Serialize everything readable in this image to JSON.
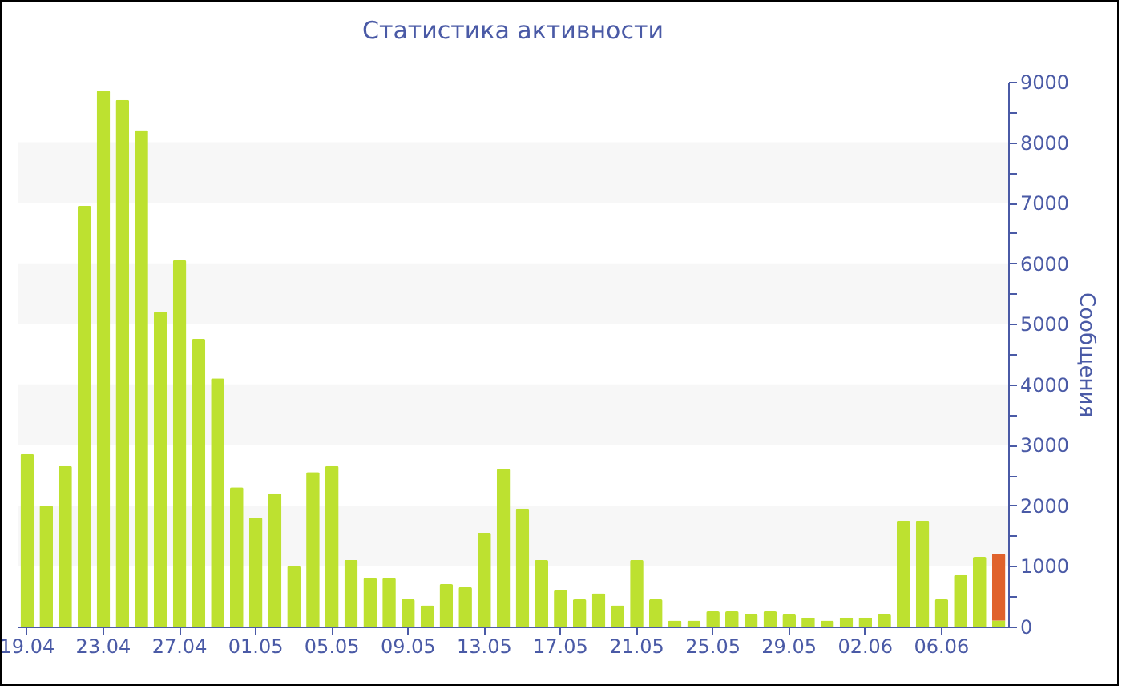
{
  "chart_data": {
    "type": "bar",
    "title": "Статистика активности",
    "ylabel": "Сообщения",
    "stacked": true,
    "legend": false,
    "grid": false,
    "categories": [
      "19.04",
      null,
      null,
      null,
      "23.04",
      null,
      null,
      null,
      "27.04",
      null,
      null,
      null,
      "01.05",
      null,
      null,
      null,
      "05.05",
      null,
      null,
      null,
      "09.05",
      null,
      null,
      null,
      "13.05",
      null,
      null,
      null,
      "17.05",
      null,
      null,
      null,
      "21.05",
      null,
      null,
      null,
      "25.05",
      null,
      null,
      null,
      "29.05",
      null,
      null,
      null,
      "02.06",
      null,
      null,
      null,
      "06.06",
      null,
      null,
      null
    ],
    "series": [
      {
        "color": "#bde130",
        "values": [
          2850,
          2000,
          2650,
          6950,
          8850,
          8700,
          8200,
          5200,
          6050,
          4750,
          4100,
          2300,
          1800,
          2200,
          1000,
          2550,
          2650,
          1100,
          800,
          800,
          450,
          350,
          700,
          650,
          1550,
          2600,
          1950,
          1100,
          600,
          450,
          550,
          350,
          1100,
          450,
          100,
          100,
          250,
          250,
          200,
          250,
          200,
          150,
          100,
          150,
          150,
          200,
          1750,
          1750,
          450,
          850,
          1150,
          100
        ]
      },
      {
        "color": "#e0622c",
        "values": [
          null,
          null,
          null,
          null,
          null,
          null,
          null,
          null,
          null,
          null,
          null,
          null,
          null,
          null,
          null,
          null,
          null,
          null,
          null,
          null,
          null,
          null,
          null,
          null,
          null,
          null,
          null,
          null,
          null,
          null,
          null,
          null,
          null,
          null,
          null,
          null,
          null,
          null,
          null,
          null,
          null,
          null,
          null,
          null,
          null,
          null,
          null,
          null,
          null,
          null,
          null,
          1100
        ]
      }
    ],
    "ylim": [
      0,
      9000
    ],
    "yticks": [
      0,
      {
        "value": 500,
        "label": null
      },
      1000,
      {
        "value": 1500,
        "label": null
      },
      2000,
      {
        "value": 2500,
        "label": null
      },
      3000,
      {
        "value": 3500,
        "label": null
      },
      4000,
      {
        "value": 4500,
        "label": null
      },
      5000,
      {
        "value": 5500,
        "label": null
      },
      6000,
      {
        "value": 6500,
        "label": null
      },
      7000,
      {
        "value": 7500,
        "label": null
      },
      8000,
      {
        "value": 8500,
        "label": null
      },
      9000
    ],
    "bands": [
      {
        "axis": "y",
        "from": 1000,
        "to": 2000,
        "color": "#f7f7f7"
      },
      {
        "axis": "y",
        "from": 3000,
        "to": 4000,
        "color": "#f7f7f7"
      },
      {
        "axis": "y",
        "from": 5000,
        "to": 6000,
        "color": "#f7f7f7"
      },
      {
        "axis": "y",
        "from": 7000,
        "to": 8000,
        "color": "#f7f7f7"
      }
    ]
  }
}
